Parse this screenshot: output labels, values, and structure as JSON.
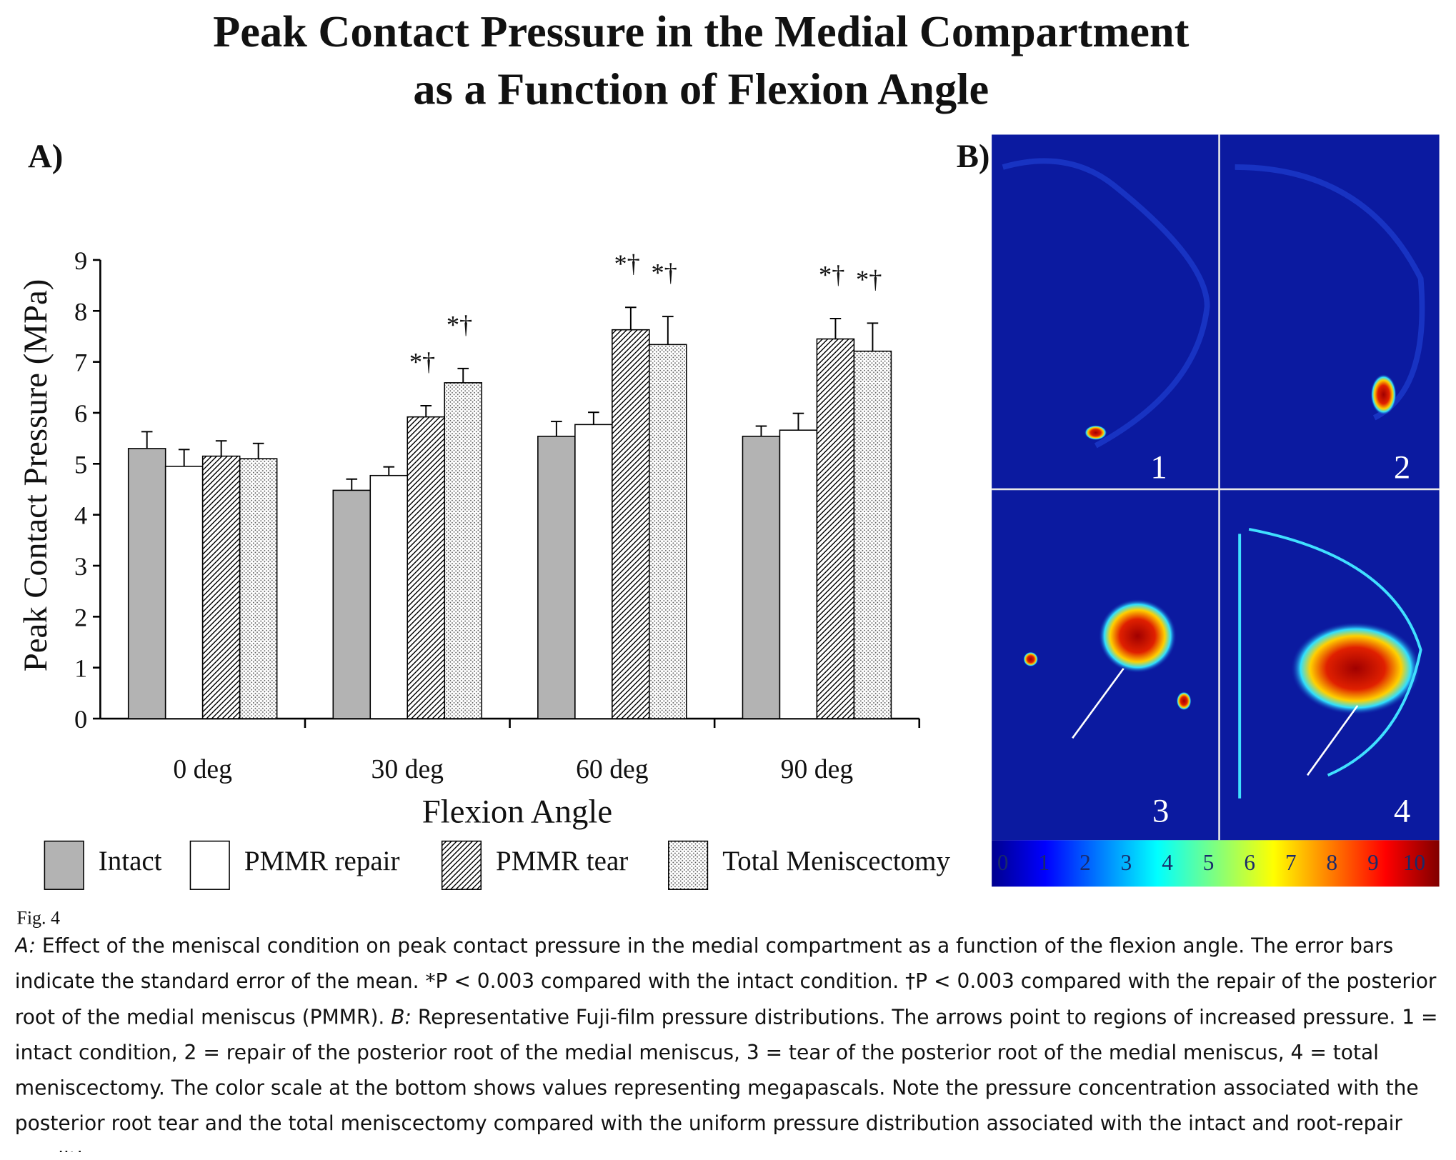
{
  "chart_data": {
    "type": "bar",
    "title": [
      "Peak Contact Pressure in the Medial Compartment",
      "as a Function of Flexion Angle"
    ],
    "panel_label": "A)",
    "x_label": "Flexion Angle",
    "y_label": "Peak Contact Pressure (MPa)",
    "categories": [
      "0 deg",
      "30 deg",
      "60 deg",
      "90 deg"
    ],
    "series": [
      {
        "name": "Intact",
        "color": "#b3b3b3",
        "fill": "solid",
        "values": [
          5.3,
          4.48,
          5.54,
          5.54
        ],
        "errors": [
          0.33,
          0.22,
          0.29,
          0.2
        ],
        "markers": [
          null,
          null,
          null,
          null
        ]
      },
      {
        "name": "PMMR repair",
        "color": "#ffffff",
        "fill": "solid",
        "values": [
          4.95,
          4.77,
          5.77,
          5.66
        ],
        "errors": [
          0.33,
          0.17,
          0.24,
          0.33
        ],
        "markers": [
          null,
          null,
          null,
          null
        ]
      },
      {
        "name": "PMMR tear",
        "color": "#000000",
        "fill": "hatch",
        "values": [
          5.15,
          5.92,
          7.63,
          7.45
        ],
        "errors": [
          0.3,
          0.22,
          0.44,
          0.4
        ],
        "markers": [
          null,
          "*†",
          "*†",
          "*†"
        ]
      },
      {
        "name": "Total Meniscectomy",
        "color": "#000000",
        "fill": "dots",
        "values": [
          5.1,
          6.59,
          7.34,
          7.21
        ],
        "errors": [
          0.3,
          0.28,
          0.55,
          0.55
        ],
        "markers": [
          null,
          "*†",
          "*†",
          "*†"
        ]
      }
    ],
    "ylim": [
      0,
      9
    ],
    "yticks": [
      0,
      1,
      2,
      3,
      4,
      5,
      6,
      7,
      8,
      9
    ],
    "grid": false
  },
  "panel_b": {
    "label": "B)",
    "images": [
      "1",
      "2",
      "3",
      "4"
    ],
    "colorbar_ticks": [
      0,
      1,
      2,
      3,
      4,
      5,
      6,
      7,
      8,
      9,
      10
    ]
  },
  "figure_label": "Fig. 4",
  "caption": [
    "A:",
    " Effect of the meniscal condition on peak contact pressure in the medial compartment as a function of the flexion angle. The error bars indicate the standard error of the mean. *P < 0.003 compared with the intact condition. †P < 0.003 compared with the repair of the posterior root of the medial meniscus (PMMR). ",
    "B:",
    " Representative Fuji-film pressure distributions. The arrows point to regions of increased pressure. 1 = intact condition, 2 = repair of the posterior root of the medial meniscus, 3 = tear of the posterior root of the medial meniscus, 4 = total meniscectomy. The color scale at the bottom shows values representing megapascals. Note the pressure concentration associated with the posterior root tear and the total meniscectomy compared with the uniform pressure distribution associated with the intact and root-repair conditions."
  ]
}
